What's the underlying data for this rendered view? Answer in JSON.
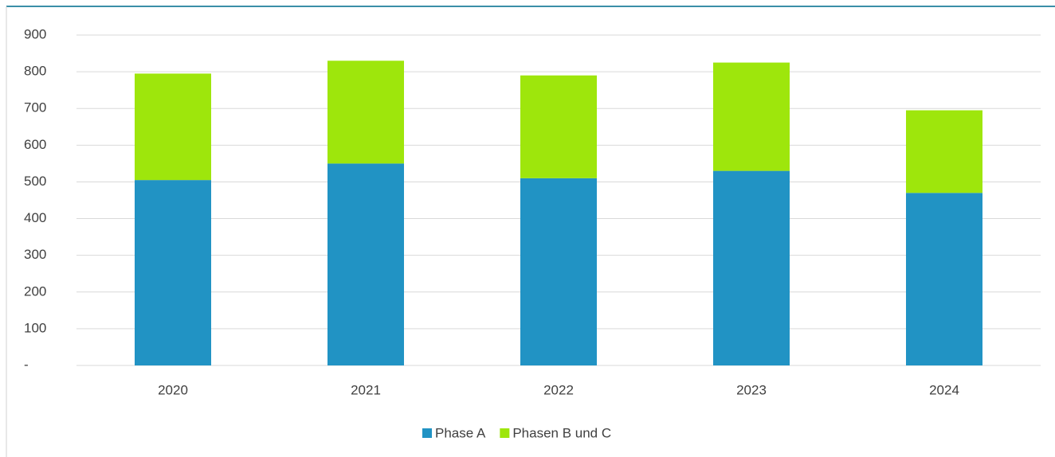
{
  "chart_data": {
    "type": "stacked_bar",
    "categories": [
      "2020",
      "2021",
      "2022",
      "2023",
      "2024"
    ],
    "series": [
      {
        "name": "Phase A",
        "color": "#2193c4",
        "values": [
          505,
          550,
          510,
          530,
          470
        ]
      },
      {
        "name": "Phasen B und C",
        "color": "#9ee60c",
        "values": [
          290,
          280,
          280,
          295,
          225
        ]
      }
    ],
    "ylim": [
      0,
      900
    ],
    "yticks": [
      {
        "value": 0,
        "label": "-"
      },
      100,
      200,
      300,
      400,
      500,
      600,
      700,
      800,
      900
    ],
    "grid": true,
    "legend": "bottom"
  }
}
